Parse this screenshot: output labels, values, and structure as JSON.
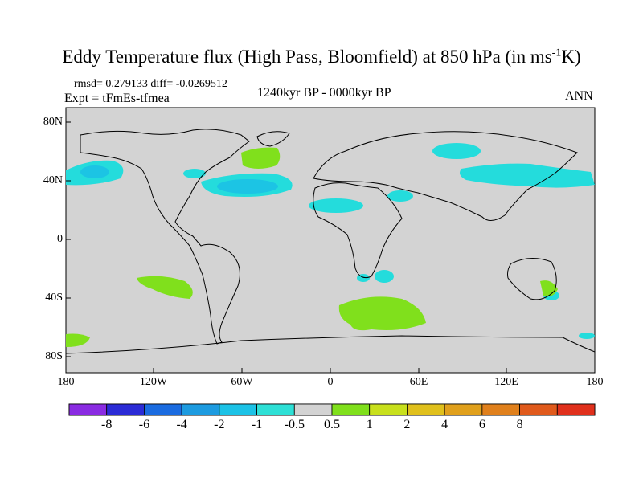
{
  "title_main": "Eddy Temperature flux (High Pass, Bloomfield) at 850 hPa (in ms",
  "title_sup": "-1",
  "title_end": "K)",
  "stats": "rmsd= 0.279133 diff= -0.0269512",
  "experiment": "Expt = tFmEs-tfmea",
  "period": "1240kyr BP - 0000kyr BP",
  "season": "ANN",
  "lat_labels": [
    "80N",
    "40N",
    "0",
    "40S",
    "80S"
  ],
  "lon_labels": [
    "180",
    "120W",
    "60W",
    "0",
    "60E",
    "120E",
    "180"
  ],
  "colorbar": {
    "colors": [
      "#8a2be2",
      "#2b2bd6",
      "#1a6be0",
      "#1d9be0",
      "#1cc2e6",
      "#2ee0d6",
      "#d3d3d3",
      "#80e01c",
      "#c8e01c",
      "#e0c01c",
      "#e0a01c",
      "#e0801c",
      "#e05a1c",
      "#e0301c"
    ],
    "tick_labels": [
      "-8",
      "-6",
      "-4",
      "-2",
      "-1",
      "-0.5",
      "0.5",
      "1",
      "2",
      "4",
      "6",
      "8"
    ]
  },
  "colors": {
    "background": "#d3d3d3",
    "negative_weak": "#24dcdc",
    "negative_mid": "#1cc4e4",
    "positive_weak": "#80e01c"
  }
}
